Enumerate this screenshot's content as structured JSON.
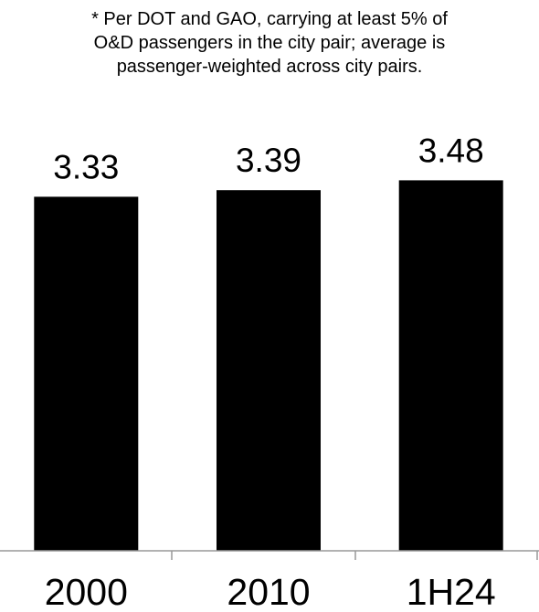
{
  "note": {
    "lines": [
      "* Per DOT and GAO, carrying at least 5% of",
      "O&D passengers in the city pair; average is",
      "passenger-weighted across city pairs."
    ]
  },
  "chart_data": {
    "type": "bar",
    "categories": [
      "2000",
      "2010",
      "1H24"
    ],
    "values": [
      3.33,
      3.39,
      3.48
    ],
    "data_labels": [
      "3.33",
      "3.39",
      "3.48"
    ],
    "title": "",
    "xlabel": "",
    "ylabel": "",
    "ylim": [
      0,
      3.6
    ],
    "grid": false,
    "legend": "none",
    "bar_color": "#000000",
    "axis_color": "#999999"
  }
}
